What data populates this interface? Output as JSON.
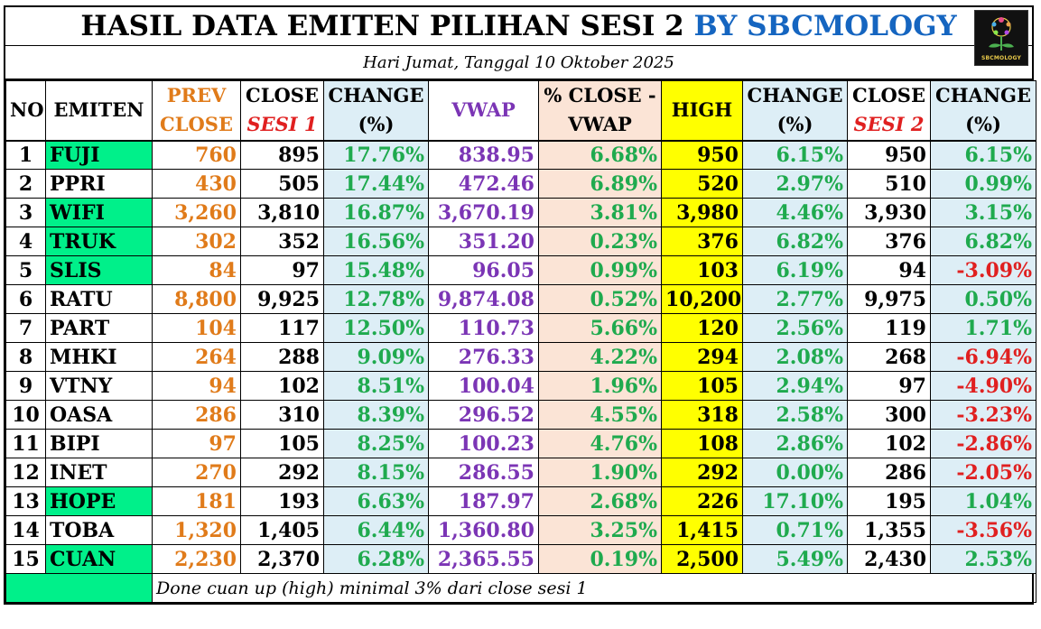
{
  "title": {
    "main": "HASIL DATA EMITEN PILIHAN SESI 2",
    "brand": "BY SBCMOLOGY"
  },
  "logo_text": "SBCMOLOGY",
  "subtitle": "Hari Jumat, Tanggal 10 Oktober 2025",
  "headers": {
    "no": "NO",
    "emiten": "EMITEN",
    "prev_l1": "PREV",
    "prev_l2": "CLOSE",
    "close1_l1": "CLOSE",
    "close1_l2": "SESI 1",
    "change1_l1": "CHANGE",
    "change1_l2": "(%)",
    "vwap": "VWAP",
    "closevwap_l1": "% CLOSE  -",
    "closevwap_l2": "VWAP",
    "high": "HIGH",
    "change2_l1": "CHANGE",
    "change2_l2": "(%)",
    "close2_l1": "CLOSE",
    "close2_l2": "SESI 2",
    "change3_l1": "CHANGE",
    "change3_l2": "(%)"
  },
  "rows": [
    {
      "no": "1",
      "emiten": "FUJI",
      "prev": "760",
      "close1": "895",
      "change1": "17.76%",
      "vwap": "838.95",
      "closevwap": "6.68%",
      "high": "950",
      "change2": "6.15%",
      "close2": "950",
      "change3": "6.15%"
    },
    {
      "no": "2",
      "emiten": "PPRI",
      "prev": "430",
      "close1": "505",
      "change1": "17.44%",
      "vwap": "472.46",
      "closevwap": "6.89%",
      "high": "520",
      "change2": "2.97%",
      "close2": "510",
      "change3": "0.99%"
    },
    {
      "no": "3",
      "emiten": "WIFI",
      "prev": "3,260",
      "close1": "3,810",
      "change1": "16.87%",
      "vwap": "3,670.19",
      "closevwap": "3.81%",
      "high": "3,980",
      "change2": "4.46%",
      "close2": "3,930",
      "change3": "3.15%"
    },
    {
      "no": "4",
      "emiten": "TRUK",
      "prev": "302",
      "close1": "352",
      "change1": "16.56%",
      "vwap": "351.20",
      "closevwap": "0.23%",
      "high": "376",
      "change2": "6.82%",
      "close2": "376",
      "change3": "6.82%"
    },
    {
      "no": "5",
      "emiten": "SLIS",
      "prev": "84",
      "close1": "97",
      "change1": "15.48%",
      "vwap": "96.05",
      "closevwap": "0.99%",
      "high": "103",
      "change2": "6.19%",
      "close2": "94",
      "change3": "-3.09%"
    },
    {
      "no": "6",
      "emiten": "RATU",
      "prev": "8,800",
      "close1": "9,925",
      "change1": "12.78%",
      "vwap": "9,874.08",
      "closevwap": "0.52%",
      "high": "10,200",
      "change2": "2.77%",
      "close2": "9,975",
      "change3": "0.50%"
    },
    {
      "no": "7",
      "emiten": "PART",
      "prev": "104",
      "close1": "117",
      "change1": "12.50%",
      "vwap": "110.73",
      "closevwap": "5.66%",
      "high": "120",
      "change2": "2.56%",
      "close2": "119",
      "change3": "1.71%"
    },
    {
      "no": "8",
      "emiten": "MHKI",
      "prev": "264",
      "close1": "288",
      "change1": "9.09%",
      "vwap": "276.33",
      "closevwap": "4.22%",
      "high": "294",
      "change2": "2.08%",
      "close2": "268",
      "change3": "-6.94%"
    },
    {
      "no": "9",
      "emiten": "VTNY",
      "prev": "94",
      "close1": "102",
      "change1": "8.51%",
      "vwap": "100.04",
      "closevwap": "1.96%",
      "high": "105",
      "change2": "2.94%",
      "close2": "97",
      "change3": "-4.90%"
    },
    {
      "no": "10",
      "emiten": "OASA",
      "prev": "286",
      "close1": "310",
      "change1": "8.39%",
      "vwap": "296.52",
      "closevwap": "4.55%",
      "high": "318",
      "change2": "2.58%",
      "close2": "300",
      "change3": "-3.23%"
    },
    {
      "no": "11",
      "emiten": "BIPI",
      "prev": "97",
      "close1": "105",
      "change1": "8.25%",
      "vwap": "100.23",
      "closevwap": "4.76%",
      "high": "108",
      "change2": "2.86%",
      "close2": "102",
      "change3": "-2.86%"
    },
    {
      "no": "12",
      "emiten": "INET",
      "prev": "270",
      "close1": "292",
      "change1": "8.15%",
      "vwap": "286.55",
      "closevwap": "1.90%",
      "high": "292",
      "change2": "0.00%",
      "close2": "286",
      "change3": "-2.05%"
    },
    {
      "no": "13",
      "emiten": "HOPE",
      "prev": "181",
      "close1": "193",
      "change1": "6.63%",
      "vwap": "187.97",
      "closevwap": "2.68%",
      "high": "226",
      "change2": "17.10%",
      "close2": "195",
      "change3": "1.04%"
    },
    {
      "no": "14",
      "emiten": "TOBA",
      "prev": "1,320",
      "close1": "1,405",
      "change1": "6.44%",
      "vwap": "1,360.80",
      "closevwap": "3.25%",
      "high": "1,415",
      "change2": "0.71%",
      "close2": "1,355",
      "change3": "-3.56%"
    },
    {
      "no": "15",
      "emiten": "CUAN",
      "prev": "2,230",
      "close1": "2,370",
      "change1": "6.28%",
      "vwap": "2,365.55",
      "closevwap": "0.19%",
      "high": "2,500",
      "change2": "5.49%",
      "close2": "2,430",
      "change3": "2.53%"
    }
  ],
  "highlighted_emiten": [
    "FUJI",
    "WIFI",
    "TRUK",
    "SLIS",
    "HOPE",
    "CUAN"
  ],
  "footer_note": "Done cuan up (high) minimal 3% dari close sesi 1",
  "colors": {
    "highlight": "#00f08a",
    "high_col": "#ffff00",
    "change_bg": "#ddeef6",
    "vwap_diff_bg": "#fbe4d6",
    "positive": "#1faa4e",
    "negative": "#e02020",
    "prev": "#e07b1a",
    "vwap": "#7b35b5",
    "brand": "#1565c0"
  }
}
